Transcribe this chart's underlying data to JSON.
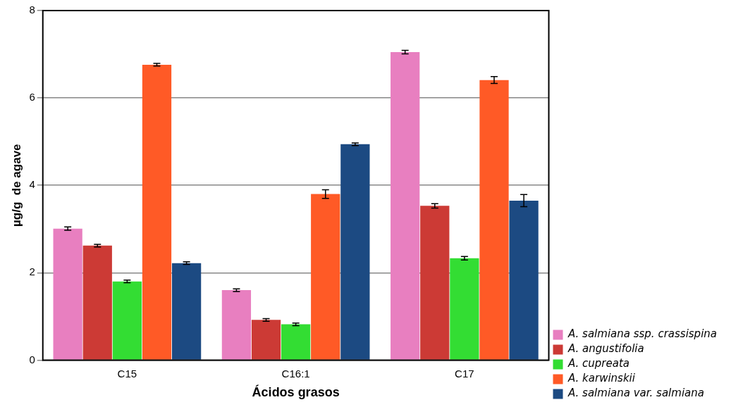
{
  "chart_data": {
    "type": "bar",
    "xlabel": "Ácidos grasos",
    "ylabel": "µg/g  de agave",
    "categories": [
      "C15",
      "C16:1",
      "C17"
    ],
    "series": [
      {
        "name": "A. salmiana ssp. crassispina",
        "color": "#e87fc0",
        "values": [
          3.01,
          1.6,
          7.05
        ],
        "errors": [
          0.04,
          0.03,
          0.04
        ]
      },
      {
        "name": "A. angustifolia",
        "color": "#cc3a35",
        "values": [
          2.62,
          0.92,
          3.53
        ],
        "errors": [
          0.03,
          0.03,
          0.05
        ]
      },
      {
        "name": "A. cupreata",
        "color": "#33dd33",
        "values": [
          1.8,
          0.82,
          2.33
        ],
        "errors": [
          0.03,
          0.03,
          0.04
        ]
      },
      {
        "name": "A. karwinskii",
        "color": "#ff5a26",
        "values": [
          6.76,
          3.8,
          6.41
        ],
        "errors": [
          0.03,
          0.1,
          0.08
        ]
      },
      {
        "name": "A. salmiana var. salmiana",
        "color": "#1c4a82",
        "values": [
          2.22,
          4.94,
          3.65
        ],
        "errors": [
          0.03,
          0.03,
          0.14
        ]
      }
    ],
    "ylim": [
      0,
      8
    ],
    "yticks": [
      0,
      2,
      4,
      6,
      8
    ],
    "grid": "y",
    "legend": "right"
  }
}
